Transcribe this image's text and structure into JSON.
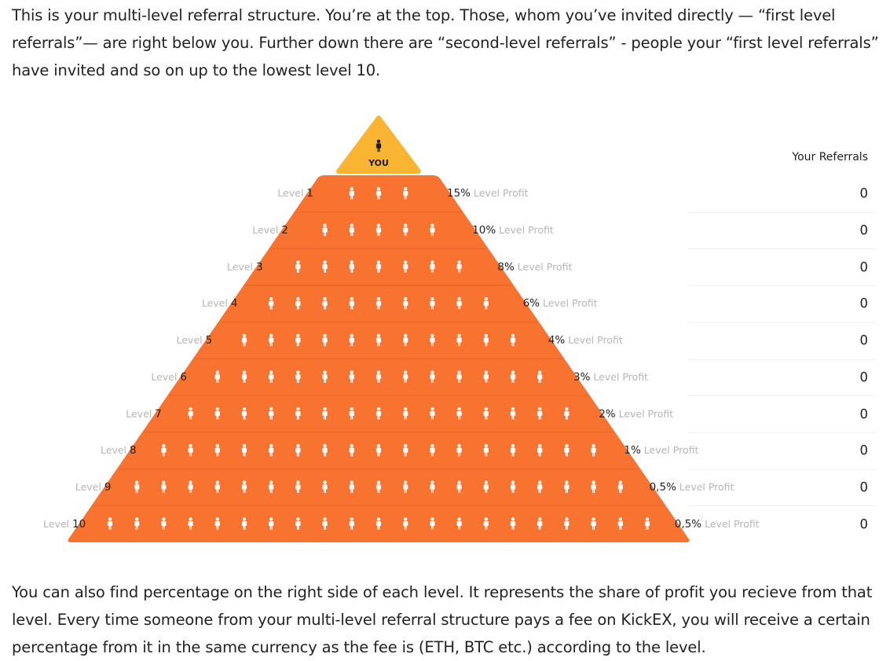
{
  "intro_text": "This is your multi-level referral structure. You’re at the top. Those, whom you’ve invited directly — “first level referrals”— are right below you. Further down there are “second-level referrals” - people your “first level referrals” have invited and so on up to the lowest level 10.",
  "outro_text": "You can also find percentage on the right side of each level. It represents the share of profit you recieve from that level. Every time someone from your multi-level referral structure pays a fee on KickEX, you will receive a certain percentage from it in the same currency as the fee is (ETH, BTC etc.) according to the level.",
  "apex": {
    "label": "YOU",
    "icon": "person-icon"
  },
  "referrals_header": "Your Referrals",
  "level_word": "Level",
  "profit_word": "Level Profit",
  "colors": {
    "pyramid": "#f7732f",
    "apex": "#f9b531",
    "person_white": "#ffffff",
    "person_dark": "#1b1b1b"
  },
  "levels": [
    {
      "number": "1",
      "profit": "15%",
      "referrals": "0",
      "icons": 3
    },
    {
      "number": "2",
      "profit": "10%",
      "referrals": "0",
      "icons": 5
    },
    {
      "number": "3",
      "profit": "8%",
      "referrals": "0",
      "icons": 7
    },
    {
      "number": "4",
      "profit": "6%",
      "referrals": "0",
      "icons": 9
    },
    {
      "number": "5",
      "profit": "4%",
      "referrals": "0",
      "icons": 11
    },
    {
      "number": "6",
      "profit": "3%",
      "referrals": "0",
      "icons": 13
    },
    {
      "number": "7",
      "profit": "2%",
      "referrals": "0",
      "icons": 15
    },
    {
      "number": "8",
      "profit": "1%",
      "referrals": "0",
      "icons": 17
    },
    {
      "number": "9",
      "profit": "0,5%",
      "referrals": "0",
      "icons": 19
    },
    {
      "number": "10",
      "profit": "0,5%",
      "referrals": "0",
      "icons": 21
    }
  ]
}
